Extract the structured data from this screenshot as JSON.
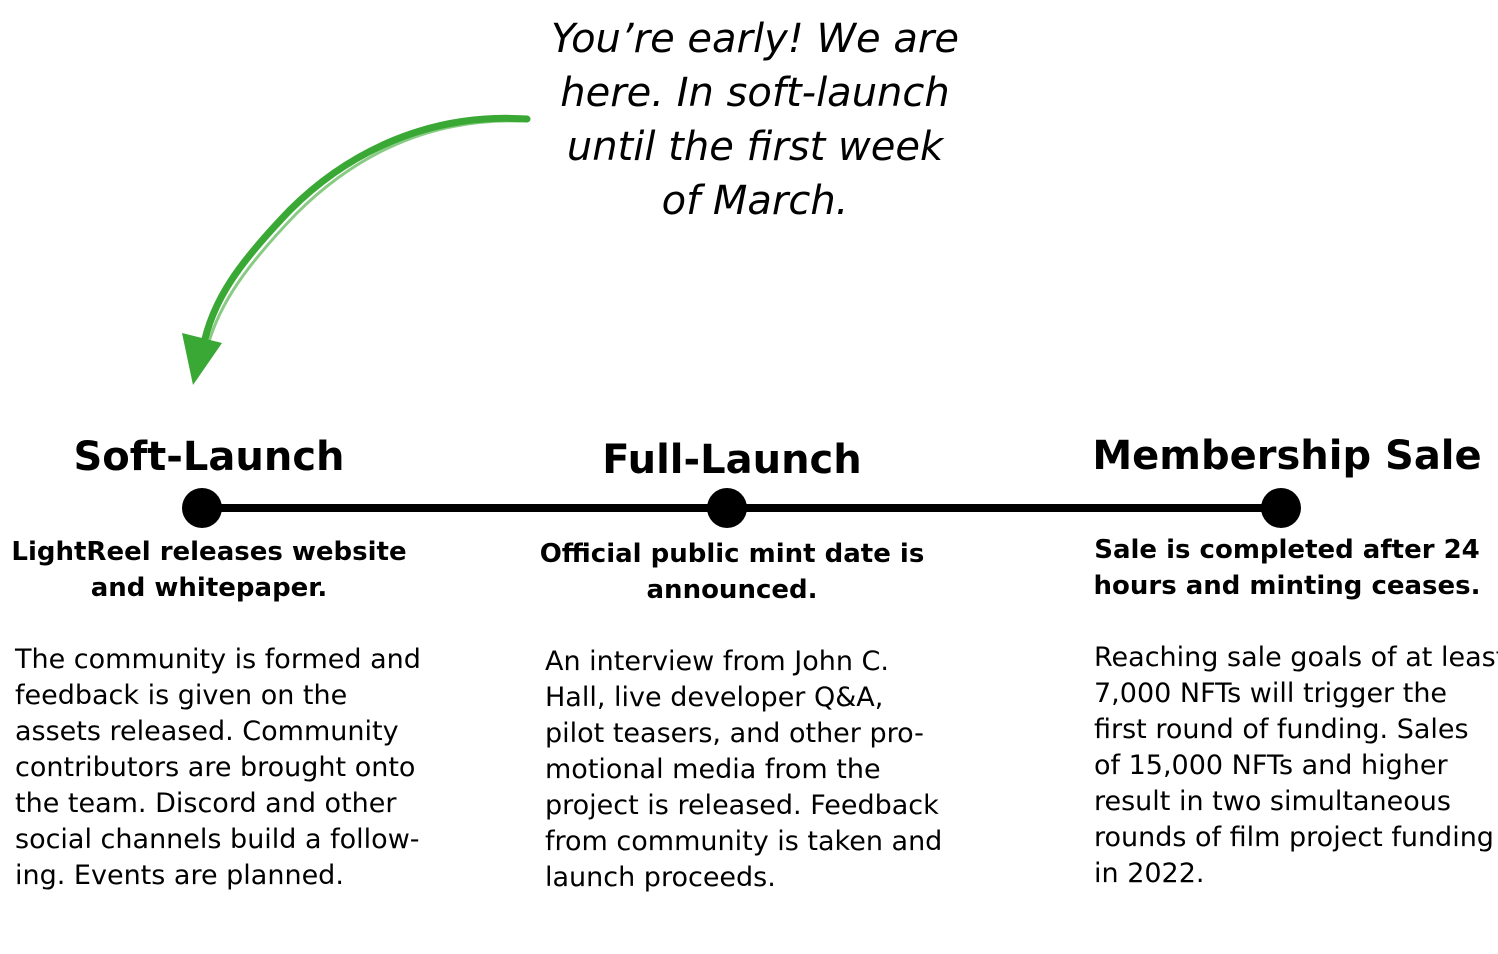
{
  "callout": {
    "lines": [
      "You’re early! We are",
      "here. In soft-launch",
      "until the first week",
      "of March."
    ]
  },
  "colors": {
    "arrow": "#3aa834",
    "text": "#000000",
    "timeline": "#000000"
  },
  "milestones": [
    {
      "title": "Soft-Launch",
      "subtitle_lines": [
        "LightReel releases website",
        "and whitepaper."
      ],
      "body_lines": [
        "The community is formed and",
        "feedback is given on the",
        "assets released. Community",
        "contributors are brought onto",
        "the team. Discord and other",
        "social channels build a follow-",
        "ing. Events are planned."
      ]
    },
    {
      "title": "Full-Launch",
      "subtitle_lines": [
        "Official public mint date is",
        "announced."
      ],
      "body_lines": [
        "An interview from John C.",
        "Hall, live developer Q&A,",
        "pilot teasers, and other pro-",
        "motional media from the",
        "project is released. Feedback",
        "from community is taken and",
        "launch proceeds."
      ]
    },
    {
      "title": "Membership Sale",
      "subtitle_lines": [
        "Sale is completed after 24",
        "hours and minting ceases."
      ],
      "body_lines": [
        "Reaching sale goals of at least",
        "7,000 NFTs will trigger the",
        "first round of funding. Sales",
        "of 15,000 NFTs and higher",
        "result in two simultaneous",
        "rounds of film project funding",
        "in 2022."
      ]
    }
  ]
}
